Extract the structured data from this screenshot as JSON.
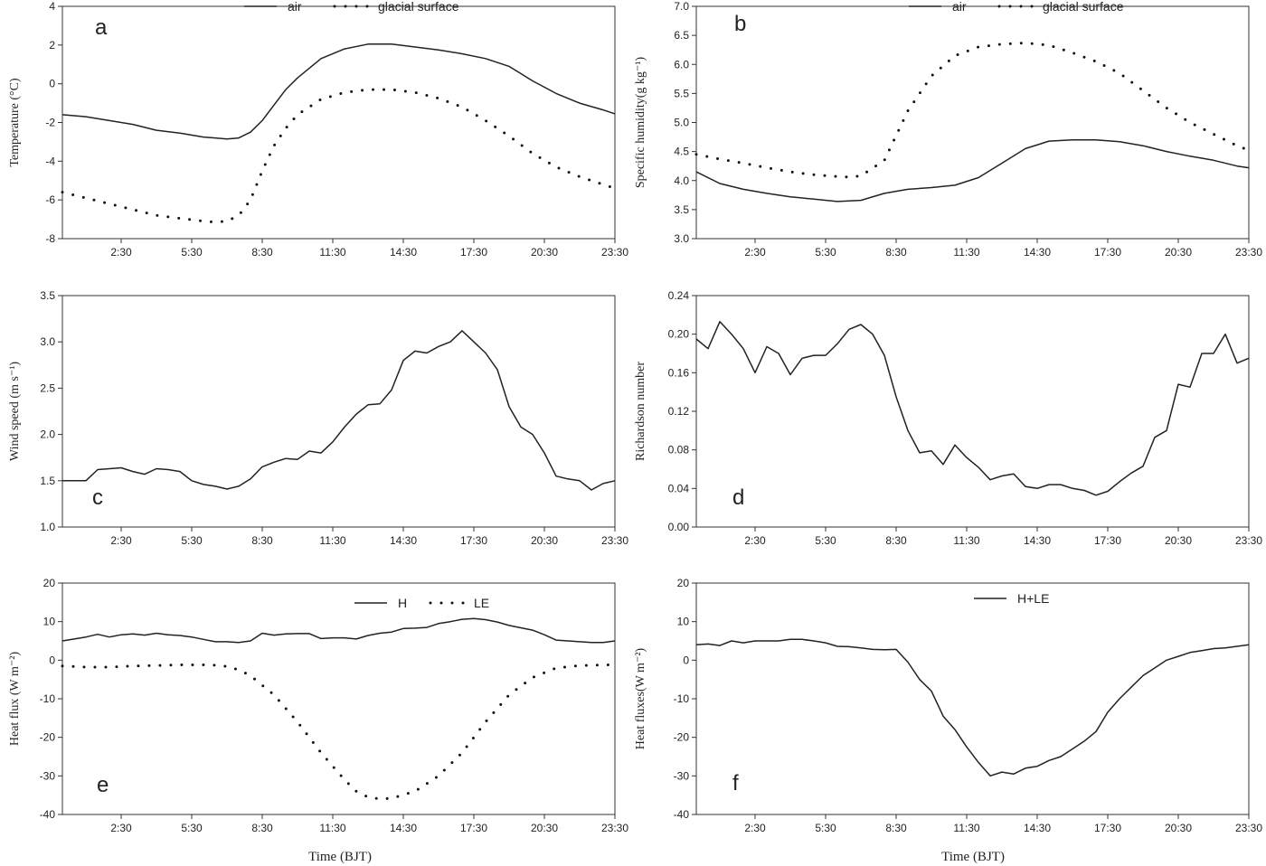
{
  "figure": {
    "xlabel_left": "Time (BJT)",
    "xlabel_right": "Time (BJT)"
  },
  "chart_data": [
    {
      "id": "a",
      "type": "line",
      "panel_label": "a",
      "ylabel": "Temperature (°C)",
      "ylim": [
        -8,
        4
      ],
      "yticks": [
        -8,
        -6,
        -4,
        -2,
        0,
        2,
        4
      ],
      "xlim": [
        0,
        23.5
      ],
      "xticks": [
        2.5,
        5.5,
        8.5,
        11.5,
        14.5,
        17.5,
        20.5,
        23.5
      ],
      "xtick_labels": [
        "2:30",
        "5:30",
        "8:30",
        "11:30",
        "14:30",
        "17:30",
        "20:30",
        "23:30"
      ],
      "legend": [
        "air",
        "glacial surface"
      ],
      "series": [
        {
          "name": "air",
          "style": "solid",
          "x": [
            0,
            1,
            2,
            3,
            4,
            5,
            6,
            6.5,
            7,
            7.5,
            8,
            8.5,
            9,
            9.5,
            10,
            11,
            12,
            13,
            14,
            15,
            16,
            17,
            18,
            19,
            20,
            21,
            22,
            23,
            23.5
          ],
          "y": [
            -1.6,
            -1.7,
            -1.9,
            -2.1,
            -2.4,
            -2.55,
            -2.75,
            -2.8,
            -2.85,
            -2.8,
            -2.5,
            -1.9,
            -1.1,
            -0.3,
            0.3,
            1.3,
            1.8,
            2.05,
            2.05,
            1.9,
            1.75,
            1.55,
            1.3,
            0.9,
            0.15,
            -0.5,
            -1.0,
            -1.35,
            -1.55
          ]
        },
        {
          "name": "glacial surface",
          "style": "dotted",
          "x": [
            0,
            1,
            2,
            3,
            4,
            5,
            6,
            6.5,
            7,
            7.5,
            8,
            8.5,
            9,
            9.5,
            10,
            11,
            12,
            13,
            14,
            15,
            16,
            17,
            18,
            19,
            20,
            21,
            22,
            23,
            23.5
          ],
          "y": [
            -5.6,
            -5.9,
            -6.2,
            -6.5,
            -6.8,
            -6.95,
            -7.1,
            -7.15,
            -7.1,
            -6.8,
            -6.0,
            -4.5,
            -3.2,
            -2.3,
            -1.6,
            -0.8,
            -0.45,
            -0.3,
            -0.3,
            -0.45,
            -0.75,
            -1.2,
            -1.9,
            -2.7,
            -3.6,
            -4.3,
            -4.8,
            -5.2,
            -5.4
          ]
        }
      ]
    },
    {
      "id": "b",
      "type": "line",
      "panel_label": "b",
      "ylabel": "Specific humidity(g kg⁻¹)",
      "ylim": [
        3.0,
        7.0
      ],
      "yticks": [
        3.0,
        3.5,
        4.0,
        4.5,
        5.0,
        5.5,
        6.0,
        6.5,
        7.0
      ],
      "ytick_format": "1",
      "xlim": [
        0,
        23.5
      ],
      "xticks": [
        2.5,
        5.5,
        8.5,
        11.5,
        14.5,
        17.5,
        20.5,
        23.5
      ],
      "xtick_labels": [
        "2:30",
        "5:30",
        "8:30",
        "11:30",
        "14:30",
        "17:30",
        "20:30",
        "23:30"
      ],
      "legend": [
        "air",
        "glacial surface"
      ],
      "series": [
        {
          "name": "air",
          "style": "solid",
          "x": [
            0,
            1,
            2,
            3,
            4,
            5,
            6,
            6.5,
            7,
            8,
            9,
            10,
            11,
            12,
            13,
            14,
            15,
            16,
            17,
            18,
            19,
            20,
            21,
            22,
            23,
            23.5
          ],
          "y": [
            4.15,
            3.95,
            3.85,
            3.78,
            3.72,
            3.68,
            3.64,
            3.65,
            3.66,
            3.78,
            3.85,
            3.88,
            3.92,
            4.05,
            4.3,
            4.55,
            4.68,
            4.7,
            4.7,
            4.67,
            4.6,
            4.5,
            4.42,
            4.35,
            4.25,
            4.22
          ]
        },
        {
          "name": "glacial surface",
          "style": "dotted",
          "x": [
            0,
            1,
            2,
            3,
            4,
            5,
            6,
            6.5,
            7,
            8,
            9,
            10,
            11,
            12,
            13,
            14,
            15,
            16,
            17,
            18,
            19,
            20,
            21,
            22,
            23,
            23.5
          ],
          "y": [
            4.45,
            4.37,
            4.3,
            4.22,
            4.15,
            4.1,
            4.07,
            4.06,
            4.08,
            4.35,
            5.2,
            5.8,
            6.15,
            6.3,
            6.35,
            6.37,
            6.33,
            6.2,
            6.05,
            5.85,
            5.55,
            5.25,
            5.0,
            4.8,
            4.6,
            4.52
          ]
        }
      ]
    },
    {
      "id": "c",
      "type": "line",
      "panel_label": "c",
      "ylabel": "Wind speed (m s⁻¹)",
      "ylim": [
        1.0,
        3.5
      ],
      "yticks": [
        1.0,
        1.5,
        2.0,
        2.5,
        3.0,
        3.5
      ],
      "ytick_format": "1",
      "xlim": [
        0,
        23.5
      ],
      "xticks": [
        2.5,
        5.5,
        8.5,
        11.5,
        14.5,
        17.5,
        20.5,
        23.5
      ],
      "xtick_labels": [
        "2:30",
        "5:30",
        "8:30",
        "11:30",
        "14:30",
        "17:30",
        "20:30",
        "23:30"
      ],
      "legend": [],
      "series": [
        {
          "name": "wind speed",
          "style": "solid",
          "x": [
            0,
            0.5,
            1,
            1.5,
            2,
            2.5,
            3,
            3.5,
            4,
            4.5,
            5,
            5.5,
            6,
            6.5,
            7,
            7.5,
            8,
            8.5,
            9,
            9.5,
            10,
            10.5,
            11,
            11.5,
            12,
            12.5,
            13,
            13.5,
            14,
            14.5,
            15,
            15.5,
            16,
            16.5,
            17,
            17.5,
            18,
            18.5,
            19,
            19.5,
            20,
            20.5,
            21,
            21.5,
            22,
            22.5,
            23,
            23.5
          ],
          "y": [
            1.5,
            1.5,
            1.5,
            1.62,
            1.63,
            1.64,
            1.6,
            1.57,
            1.63,
            1.62,
            1.6,
            1.5,
            1.46,
            1.44,
            1.41,
            1.44,
            1.52,
            1.65,
            1.7,
            1.74,
            1.73,
            1.82,
            1.8,
            1.92,
            2.08,
            2.22,
            2.32,
            2.33,
            2.48,
            2.8,
            2.9,
            2.88,
            2.95,
            3.0,
            3.12,
            3.0,
            2.88,
            2.7,
            2.3,
            2.08,
            2.0,
            1.8,
            1.55,
            1.52,
            1.5,
            1.4,
            1.47,
            1.5
          ]
        }
      ]
    },
    {
      "id": "d",
      "type": "line",
      "panel_label": "d",
      "ylabel": "Richardson number",
      "ylim": [
        0.0,
        0.24
      ],
      "yticks": [
        0.0,
        0.04,
        0.08,
        0.12,
        0.16,
        0.2,
        0.24
      ],
      "ytick_format": "2",
      "xlim": [
        0,
        23.5
      ],
      "xticks": [
        2.5,
        5.5,
        8.5,
        11.5,
        14.5,
        17.5,
        20.5,
        23.5
      ],
      "xtick_labels": [
        "2:30",
        "5:30",
        "8:30",
        "11:30",
        "14:30",
        "17:30",
        "20:30",
        "23:30"
      ],
      "legend": [],
      "series": [
        {
          "name": "Richardson number",
          "style": "solid",
          "x": [
            0,
            0.5,
            1,
            1.5,
            2,
            2.5,
            3,
            3.5,
            4,
            4.5,
            5,
            5.5,
            6,
            6.5,
            7,
            7.5,
            8,
            8.5,
            9,
            9.5,
            10,
            10.5,
            11,
            11.5,
            12,
            12.5,
            13,
            13.5,
            14,
            14.5,
            15,
            15.5,
            16,
            16.5,
            17,
            17.5,
            18,
            18.5,
            19,
            19.5,
            20,
            20.5,
            21,
            21.5,
            22,
            22.5,
            23,
            23.5
          ],
          "y": [
            0.195,
            0.185,
            0.213,
            0.2,
            0.185,
            0.16,
            0.187,
            0.18,
            0.158,
            0.175,
            0.178,
            0.178,
            0.19,
            0.205,
            0.21,
            0.2,
            0.178,
            0.135,
            0.1,
            0.077,
            0.079,
            0.065,
            0.085,
            0.072,
            0.062,
            0.049,
            0.053,
            0.055,
            0.042,
            0.04,
            0.044,
            0.044,
            0.04,
            0.038,
            0.033,
            0.037,
            0.047,
            0.056,
            0.063,
            0.093,
            0.1,
            0.148,
            0.145,
            0.18,
            0.18,
            0.2,
            0.17,
            0.175
          ]
        }
      ]
    },
    {
      "id": "e",
      "type": "line",
      "panel_label": "e",
      "ylabel": "Heat flux (W m⁻²)",
      "ylim": [
        -40,
        20
      ],
      "yticks": [
        -40,
        -30,
        -20,
        -10,
        0,
        10,
        20
      ],
      "xlim": [
        0,
        23.5
      ],
      "xticks": [
        2.5,
        5.5,
        8.5,
        11.5,
        14.5,
        17.5,
        20.5,
        23.5
      ],
      "xtick_labels": [
        "2:30",
        "5:30",
        "8:30",
        "11:30",
        "14:30",
        "17:30",
        "20:30",
        "23:30"
      ],
      "legend": [
        "H",
        "LE"
      ],
      "series": [
        {
          "name": "H",
          "style": "solid",
          "x": [
            0,
            0.5,
            1,
            1.5,
            2,
            2.5,
            3,
            3.5,
            4,
            4.5,
            5,
            5.5,
            6,
            6.5,
            7,
            7.5,
            8,
            8.5,
            9,
            9.5,
            10,
            10.5,
            11,
            11.5,
            12,
            12.5,
            13,
            13.5,
            14,
            14.5,
            15,
            15.5,
            16,
            16.5,
            17,
            17.5,
            18,
            18.5,
            19,
            19.5,
            20,
            20.5,
            21,
            21.5,
            22,
            22.5,
            23,
            23.5
          ],
          "y": [
            5.0,
            5.5,
            6.0,
            6.7,
            6.0,
            6.6,
            6.8,
            6.5,
            7.0,
            6.6,
            6.4,
            6.0,
            5.4,
            4.8,
            4.8,
            4.6,
            5.0,
            7.0,
            6.5,
            6.8,
            6.9,
            6.9,
            5.6,
            5.8,
            5.8,
            5.5,
            6.4,
            7.0,
            7.3,
            8.2,
            8.3,
            8.5,
            9.5,
            10.0,
            10.6,
            10.8,
            10.5,
            9.9,
            9.0,
            8.4,
            7.8,
            6.6,
            5.2,
            5.0,
            4.8,
            4.6,
            4.6,
            5.0
          ]
        },
        {
          "name": "LE",
          "style": "dotted",
          "x": [
            0,
            1,
            2,
            3,
            4,
            5,
            6,
            6.5,
            7,
            7.5,
            8,
            9,
            10,
            11,
            12,
            12.5,
            13,
            13.5,
            14,
            15,
            16,
            17,
            18,
            19,
            20,
            21,
            22,
            23,
            23.5
          ],
          "y": [
            -1.5,
            -1.8,
            -1.8,
            -1.5,
            -1.4,
            -1.2,
            -1.2,
            -1.3,
            -1.6,
            -2.5,
            -4.0,
            -9.0,
            -16.0,
            -24.0,
            -31.0,
            -34.0,
            -35.5,
            -36.0,
            -35.8,
            -34.0,
            -30.0,
            -24.0,
            -16.0,
            -9.0,
            -4.5,
            -2.0,
            -1.4,
            -1.2,
            -1.2
          ]
        }
      ]
    },
    {
      "id": "f",
      "type": "line",
      "panel_label": "f",
      "ylabel": "Heat fluxes(W m⁻²)",
      "ylim": [
        -40,
        20
      ],
      "yticks": [
        -40,
        -30,
        -20,
        -10,
        0,
        10,
        20
      ],
      "xlim": [
        0,
        23.5
      ],
      "xticks": [
        2.5,
        5.5,
        8.5,
        11.5,
        14.5,
        17.5,
        20.5,
        23.5
      ],
      "xtick_labels": [
        "2:30",
        "5:30",
        "8:30",
        "11:30",
        "14:30",
        "17:30",
        "20:30",
        "23:30"
      ],
      "legend": [
        "H+LE"
      ],
      "series": [
        {
          "name": "H+LE",
          "style": "solid",
          "x": [
            0,
            0.5,
            1,
            1.5,
            2,
            2.5,
            3,
            3.5,
            4,
            4.5,
            5,
            5.5,
            6,
            6.5,
            7,
            7.5,
            8,
            8.5,
            9,
            9.5,
            10,
            10.5,
            11,
            11.5,
            12,
            12.5,
            13,
            13.5,
            14,
            14.5,
            15,
            15.5,
            16,
            16.5,
            17,
            17.5,
            18,
            18.5,
            19,
            19.5,
            20,
            20.5,
            21,
            21.5,
            22,
            22.5,
            23,
            23.5
          ],
          "y": [
            4.0,
            4.2,
            3.8,
            5.0,
            4.5,
            5.0,
            5.0,
            5.0,
            5.4,
            5.4,
            5.0,
            4.5,
            3.6,
            3.5,
            3.2,
            2.8,
            2.7,
            2.8,
            -0.5,
            -5.0,
            -8.0,
            -14.5,
            -18.0,
            -22.5,
            -26.5,
            -30.0,
            -29.0,
            -29.5,
            -28.0,
            -27.5,
            -26.0,
            -25.0,
            -23.0,
            -21.0,
            -18.5,
            -13.5,
            -10.0,
            -7.0,
            -4.0,
            -2.0,
            0.0,
            1.0,
            2.0,
            2.5,
            3.0,
            3.2,
            3.6,
            4.0
          ]
        }
      ]
    }
  ]
}
